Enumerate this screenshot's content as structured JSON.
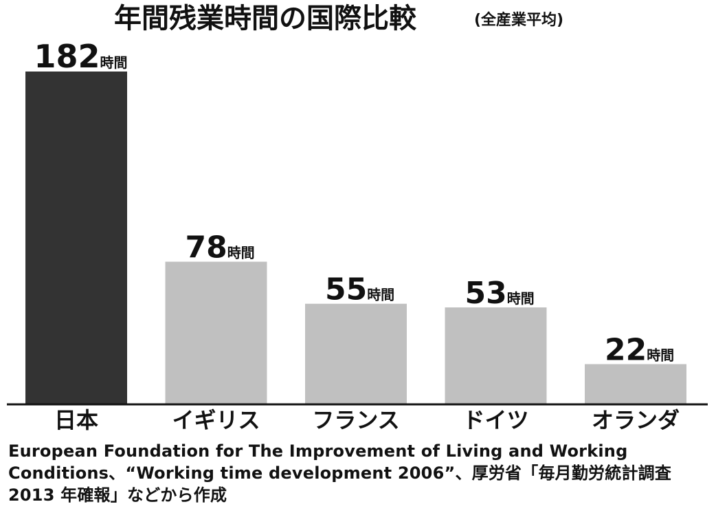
{
  "chart_data": {
    "type": "bar",
    "title": "年間残業時間の国際比較",
    "subtitle": "(全産業平均)",
    "unit": "時間",
    "categories": [
      "日本",
      "イギリス",
      "フランス",
      "ドイツ",
      "オランダ"
    ],
    "values": [
      182,
      78,
      55,
      53,
      22
    ],
    "colors": [
      "#333333",
      "#c0c0c0",
      "#c0c0c0",
      "#c0c0c0",
      "#c0c0c0"
    ],
    "ylim": [
      0,
      182
    ]
  },
  "source": "European Foundation for The Improvement of Living and Working Conditions、“Working time development 2006”、厚労省「毎月勤労統計調査　2013 年確報」などから作成"
}
